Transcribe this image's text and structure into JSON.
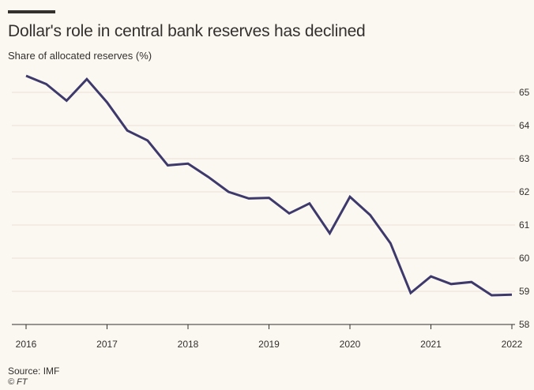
{
  "header": {
    "title": "Dollar's role in central bank reserves has declined",
    "subtitle": "Share of allocated reserves (%)"
  },
  "footer": {
    "source": "Source: IMF",
    "credit": "© FT"
  },
  "colors": {
    "line": "#3d3a6b",
    "grid": "#e8e2d8",
    "axis": "#33302e",
    "background": "#fbf7f1"
  },
  "chart_data": {
    "type": "line",
    "title": "Dollar's role in central bank reserves has declined",
    "subtitle": "Share of allocated reserves (%)",
    "xlabel": "",
    "ylabel": "Share of allocated reserves (%)",
    "ylim": [
      58,
      65.5
    ],
    "y_ticks": [
      "58",
      "59",
      "60",
      "61",
      "62",
      "63",
      "64",
      "65"
    ],
    "x_ticks": [
      "2016",
      "2017",
      "2018",
      "2019",
      "2020",
      "2021",
      "2022"
    ],
    "x_tick_values": [
      2016,
      2017,
      2018,
      2019,
      2020,
      2021,
      2022
    ],
    "xlim": [
      2016,
      2022
    ],
    "grid": "horizontal",
    "series": [
      {
        "x": [
          "2016Q1",
          "2016Q2",
          "2016Q3",
          "2016Q4",
          "2017Q1",
          "2017Q2",
          "2017Q3",
          "2017Q4",
          "2018Q1",
          "2018Q2",
          "2018Q3",
          "2018Q4",
          "2019Q1",
          "2019Q2",
          "2019Q3",
          "2019Q4",
          "2020Q1",
          "2020Q2",
          "2020Q3",
          "2020Q4",
          "2021Q1",
          "2021Q2",
          "2021Q3",
          "2021Q4",
          "2022Q1"
        ],
        "x_num": [
          2016.0,
          2016.25,
          2016.5,
          2016.75,
          2017.0,
          2017.25,
          2017.5,
          2017.75,
          2018.0,
          2018.25,
          2018.5,
          2018.75,
          2019.0,
          2019.25,
          2019.5,
          2019.75,
          2020.0,
          2020.25,
          2020.5,
          2020.75,
          2021.0,
          2021.25,
          2021.5,
          2021.75,
          2022.0
        ],
        "values": [
          65.5,
          65.25,
          64.75,
          65.4,
          64.7,
          63.85,
          63.55,
          62.8,
          62.85,
          62.45,
          62.0,
          61.8,
          61.82,
          61.35,
          61.65,
          60.75,
          61.85,
          61.3,
          60.45,
          58.95,
          59.45,
          59.22,
          59.28,
          58.88,
          58.9
        ]
      }
    ]
  }
}
